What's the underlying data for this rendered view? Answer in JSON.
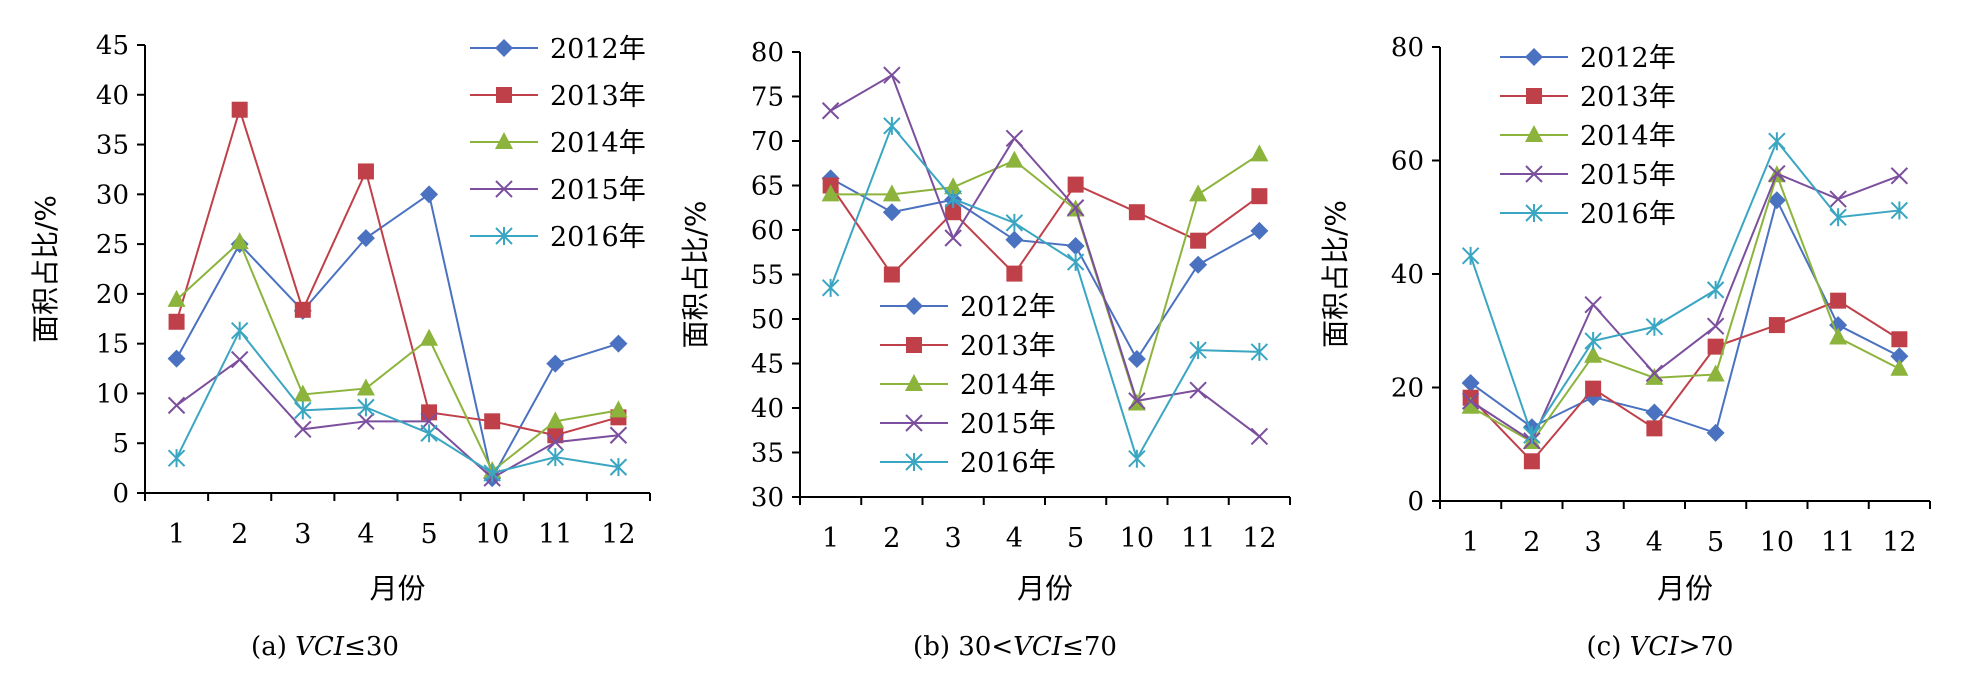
{
  "chart_data": [
    {
      "type": "line",
      "ylabel": "面积占比/%",
      "xlabel": "月份",
      "categories": [
        "1",
        "2",
        "3",
        "4",
        "5",
        "10",
        "11",
        "12"
      ],
      "ylim": [
        0,
        45
      ],
      "yticks": [
        0,
        5,
        10,
        15,
        20,
        25,
        30,
        35,
        40,
        45
      ],
      "legend_position": "top-right",
      "caption": {
        "prefix": "(a) ",
        "var": "VCI",
        "suffix": "≤30"
      },
      "series": [
        {
          "name": "2012年",
          "color": "#4a72c0",
          "marker": "diamond",
          "values": [
            13.5,
            25,
            18.3,
            25.6,
            30,
            1.5,
            13,
            15
          ]
        },
        {
          "name": "2013年",
          "color": "#c0404a",
          "marker": "square",
          "values": [
            17.2,
            38.5,
            18.4,
            32.3,
            8.1,
            7.2,
            5.8,
            7.6
          ]
        },
        {
          "name": "2014年",
          "color": "#8cb43c",
          "marker": "triangle",
          "values": [
            19.4,
            25.2,
            9.9,
            10.5,
            15.5,
            2.2,
            7.2,
            8.3
          ]
        },
        {
          "name": "2015年",
          "color": "#7b4f9d",
          "marker": "x",
          "values": [
            8.8,
            13.4,
            6.4,
            7.2,
            7.2,
            1.5,
            5.1,
            5.8
          ]
        },
        {
          "name": "2016年",
          "color": "#3aa6c2",
          "marker": "asterisk",
          "values": [
            3.5,
            16.3,
            8.3,
            8.6,
            6,
            2,
            3.6,
            2.6
          ]
        }
      ]
    },
    {
      "type": "line",
      "ylabel": "面积占比/%",
      "xlabel": "月份",
      "categories": [
        "1",
        "2",
        "3",
        "4",
        "5",
        "10",
        "11",
        "12"
      ],
      "ylim": [
        30,
        80
      ],
      "yticks": [
        30,
        35,
        40,
        45,
        50,
        55,
        60,
        65,
        70,
        75,
        80
      ],
      "legend_position": "bottom-left",
      "caption": {
        "prefix": "(b) 30<",
        "var": "VCI",
        "suffix": "≤70"
      },
      "series": [
        {
          "name": "2012年",
          "color": "#4a72c0",
          "marker": "diamond",
          "values": [
            65.8,
            62,
            63.4,
            58.9,
            58.2,
            45.5,
            56.1,
            59.9
          ]
        },
        {
          "name": "2013年",
          "color": "#c0404a",
          "marker": "square",
          "values": [
            65,
            55,
            62,
            55.1,
            65.1,
            62,
            58.8,
            63.8
          ]
        },
        {
          "name": "2014年",
          "color": "#8cb43c",
          "marker": "triangle",
          "values": [
            64,
            64,
            64.8,
            67.8,
            62.3,
            40.5,
            64,
            68.5
          ]
        },
        {
          "name": "2015年",
          "color": "#7b4f9d",
          "marker": "x",
          "values": [
            73.4,
            77.4,
            59.1,
            70.3,
            62.5,
            40.8,
            42,
            36.8
          ]
        },
        {
          "name": "2016年",
          "color": "#3aa6c2",
          "marker": "asterisk",
          "values": [
            53.5,
            71.7,
            63.5,
            60.8,
            56.4,
            34.3,
            46.5,
            46.3
          ]
        }
      ]
    },
    {
      "type": "line",
      "ylabel": "面积占比/%",
      "xlabel": "月份",
      "categories": [
        "1",
        "2",
        "3",
        "4",
        "5",
        "10",
        "11",
        "12"
      ],
      "ylim": [
        0,
        80
      ],
      "yticks": [
        0,
        20,
        40,
        60,
        80
      ],
      "legend_position": "top-left",
      "caption": {
        "prefix": "(c) ",
        "var": "VCI",
        "suffix": ">70"
      },
      "series": [
        {
          "name": "2012年",
          "color": "#4a72c0",
          "marker": "diamond",
          "values": [
            20.8,
            13,
            18.3,
            15.6,
            12,
            53,
            31,
            25.5
          ]
        },
        {
          "name": "2013年",
          "color": "#c0404a",
          "marker": "square",
          "values": [
            18.2,
            7,
            19.8,
            12.8,
            27.2,
            31,
            35.3,
            28.5
          ]
        },
        {
          "name": "2014年",
          "color": "#8cb43c",
          "marker": "triangle",
          "values": [
            16.6,
            10.4,
            25.6,
            21.7,
            22.3,
            57.4,
            28.8,
            23.3
          ]
        },
        {
          "name": "2015年",
          "color": "#7b4f9d",
          "marker": "x",
          "values": [
            17.6,
            10.6,
            34.6,
            22.5,
            30.8,
            57.7,
            53.2,
            57.3
          ]
        },
        {
          "name": "2016年",
          "color": "#3aa6c2",
          "marker": "asterisk",
          "values": [
            43.2,
            11.6,
            28.2,
            30.7,
            37.2,
            63.4,
            50,
            51.2
          ]
        }
      ]
    }
  ]
}
